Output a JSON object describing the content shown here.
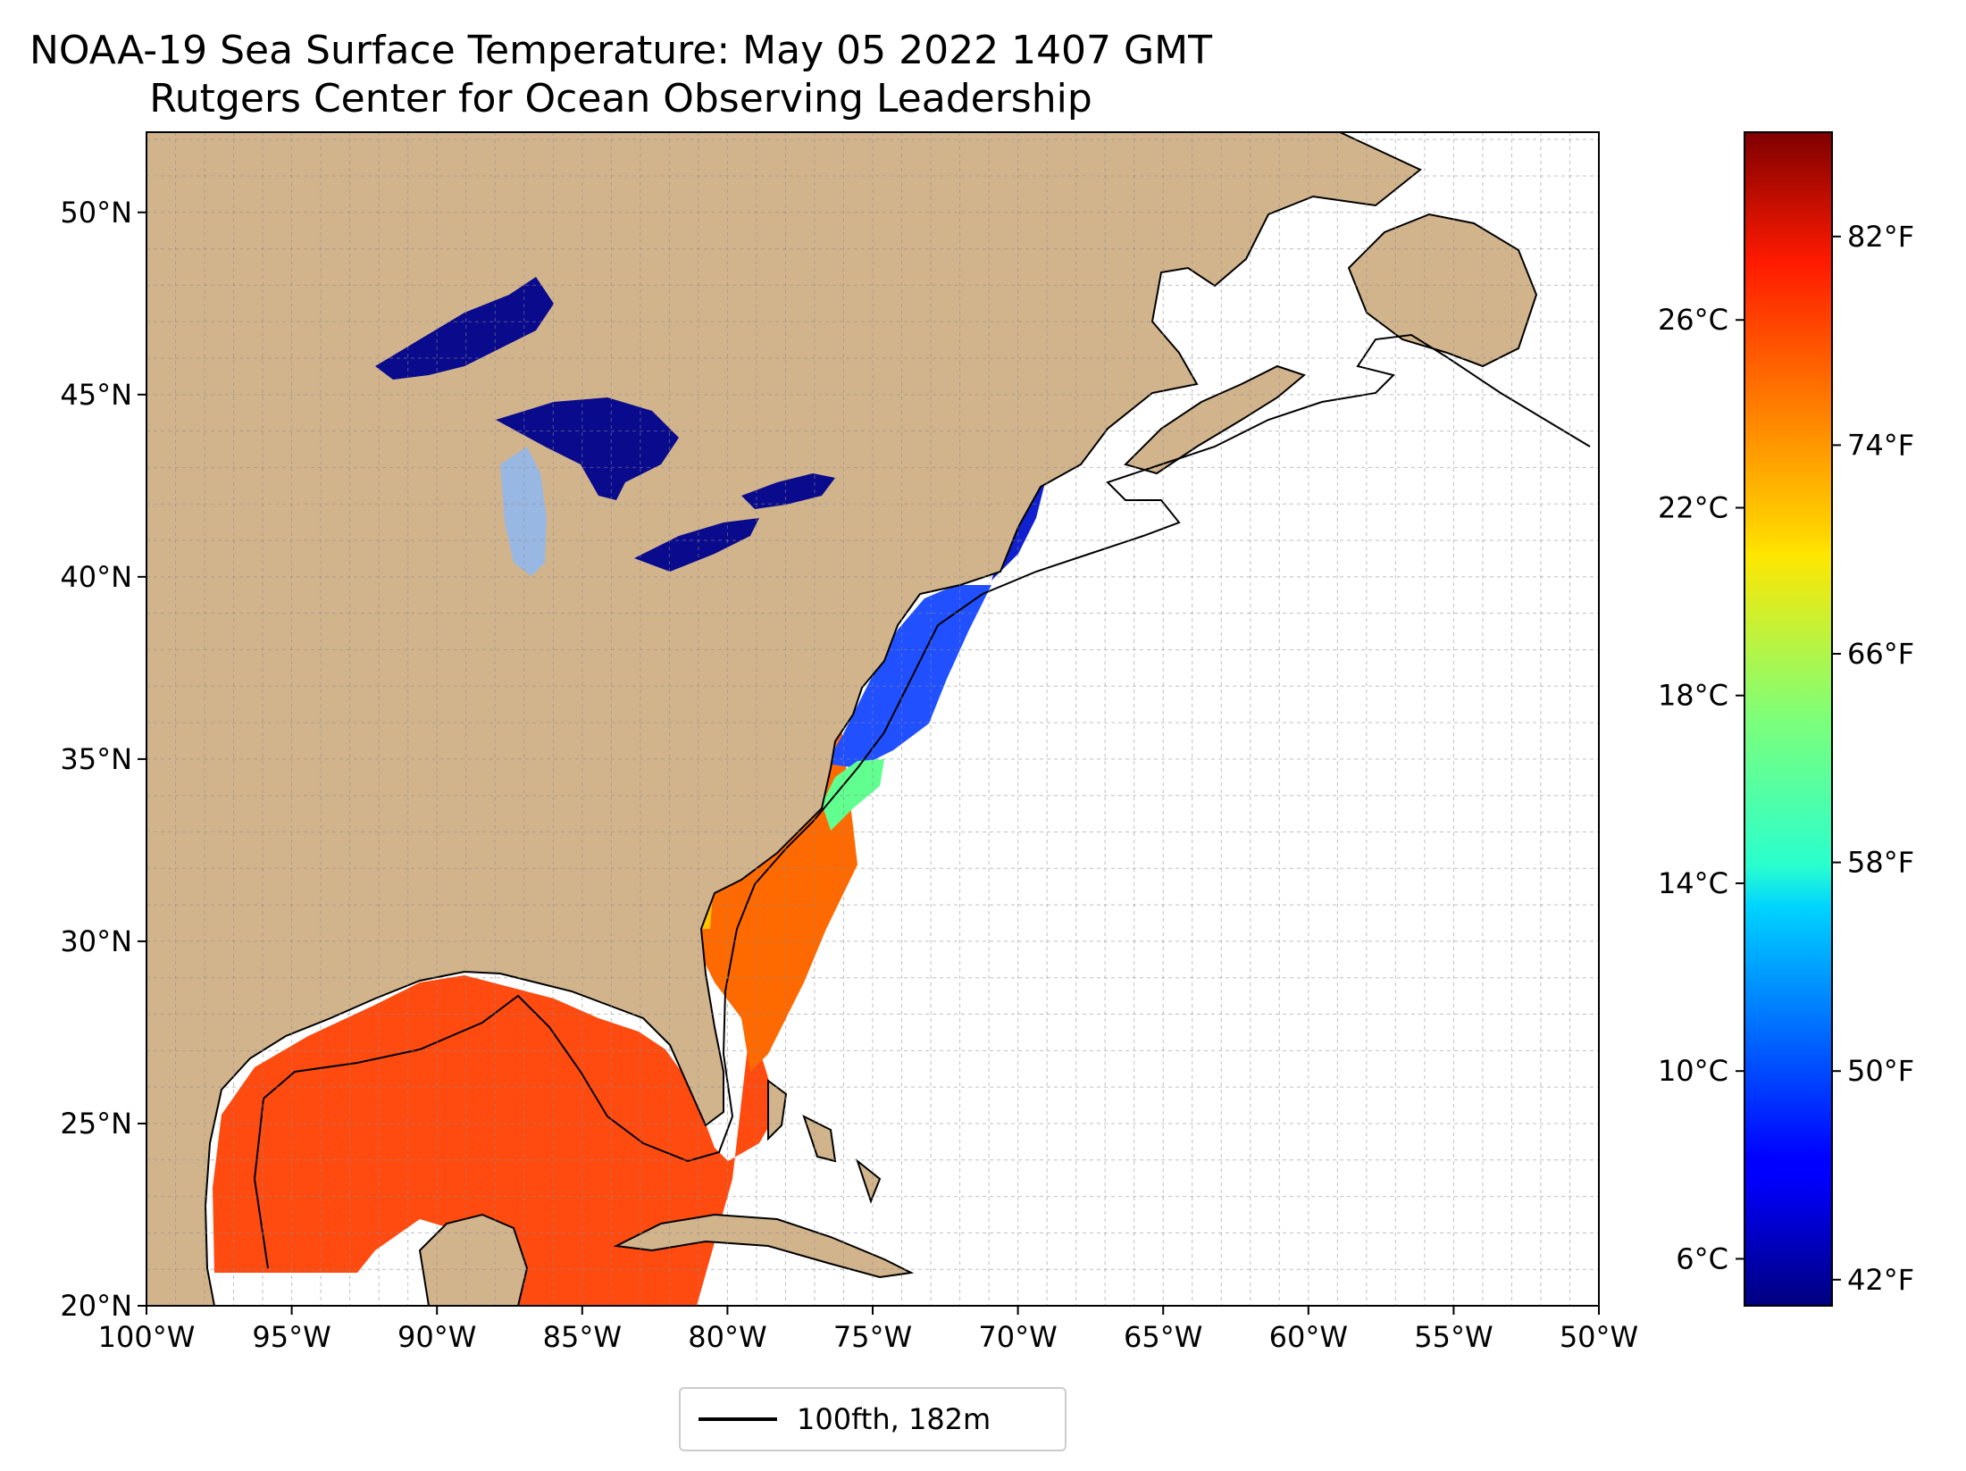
{
  "title": {
    "line1": "NOAA-19 Sea Surface Temperature: May 05 2022 1407 GMT",
    "line2": "Rutgers Center for Ocean Observing Leadership"
  },
  "map": {
    "lon_range": [
      -100,
      -50
    ],
    "lat_range": [
      20,
      52.2
    ],
    "lon_ticks": [
      "100°W",
      "95°W",
      "90°W",
      "85°W",
      "80°W",
      "75°W",
      "70°W",
      "65°W",
      "60°W",
      "55°W",
      "50°W"
    ],
    "lat_ticks": [
      "20°N",
      "25°N",
      "30°N",
      "35°N",
      "40°N",
      "45°N",
      "50°N"
    ],
    "gridlines": true,
    "land_color": "#d2b48c",
    "lake_color": "#99b7e3"
  },
  "colorbar": {
    "colormap": "jet",
    "celsius_range": [
      5,
      30
    ],
    "celsius_ticks": [
      "6°C",
      "10°C",
      "14°C",
      "18°C",
      "22°C",
      "26°C"
    ],
    "fahrenheit_ticks": [
      "42°F",
      "50°F",
      "58°F",
      "66°F",
      "74°F",
      "82°F"
    ]
  },
  "legend": {
    "label": "100fth, 182m"
  }
}
